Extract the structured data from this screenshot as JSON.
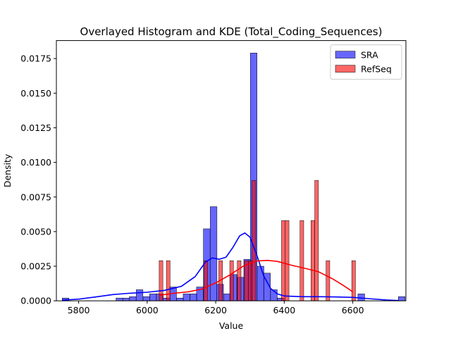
{
  "chart_data": {
    "type": "histogram",
    "title": "Overlayed Histogram and KDE (Total_Coding_Sequences)",
    "xlabel": "Value",
    "ylabel": "Density",
    "xlim": [
      5735,
      6755
    ],
    "ylim": [
      0,
      0.0188
    ],
    "xticks": [
      5800,
      6000,
      6200,
      6400,
      6600
    ],
    "yticks": [
      0.0,
      0.0025,
      0.005,
      0.0075,
      0.01,
      0.0125,
      0.015,
      0.0175
    ],
    "ytick_labels": [
      "0.0000",
      "0.0025",
      "0.0050",
      "0.0075",
      "0.0100",
      "0.0125",
      "0.0150",
      "0.0175"
    ],
    "grid": false,
    "legend_position": "top-right",
    "series": [
      {
        "name": "SRA",
        "color": "#0000ff",
        "bin_width": 19.6,
        "bins": [
          [
            5752,
            0.0002
          ],
          [
            5909,
            0.0002
          ],
          [
            5929,
            0.0002
          ],
          [
            5948,
            0.0003
          ],
          [
            5968,
            0.0008
          ],
          [
            5988,
            0.0003
          ],
          [
            6007,
            0.0005
          ],
          [
            6027,
            0.0005
          ],
          [
            6046,
            0.0002
          ],
          [
            6066,
            0.001
          ],
          [
            6086,
            0.0002
          ],
          [
            6105,
            0.0005
          ],
          [
            6125,
            0.0005
          ],
          [
            6144,
            0.001
          ],
          [
            6164,
            0.0052
          ],
          [
            6184,
            0.0068
          ],
          [
            6203,
            0.0012
          ],
          [
            6223,
            0.0005
          ],
          [
            6242,
            0.0019
          ],
          [
            6262,
            0.0017
          ],
          [
            6282,
            0.003
          ],
          [
            6301,
            0.0179
          ],
          [
            6321,
            0.0025
          ],
          [
            6340,
            0.002
          ],
          [
            6360,
            0.0008
          ],
          [
            6380,
            0.0002
          ],
          [
            6615,
            0.0005
          ],
          [
            6733,
            0.0003
          ]
        ],
        "kde": [
          [
            5752,
            5e-05
          ],
          [
            5800,
            0.00012
          ],
          [
            5850,
            0.00028
          ],
          [
            5900,
            0.00045
          ],
          [
            5950,
            0.00055
          ],
          [
            6000,
            0.00062
          ],
          [
            6050,
            0.00075
          ],
          [
            6100,
            0.00105
          ],
          [
            6140,
            0.00175
          ],
          [
            6170,
            0.0028
          ],
          [
            6190,
            0.0031
          ],
          [
            6210,
            0.003
          ],
          [
            6230,
            0.00315
          ],
          [
            6250,
            0.00385
          ],
          [
            6270,
            0.0047
          ],
          [
            6285,
            0.0049
          ],
          [
            6300,
            0.0046
          ],
          [
            6320,
            0.0033
          ],
          [
            6340,
            0.0018
          ],
          [
            6360,
            0.0009
          ],
          [
            6380,
            0.0005
          ],
          [
            6400,
            0.00035
          ],
          [
            6450,
            0.0003
          ],
          [
            6500,
            0.0003
          ],
          [
            6550,
            0.00028
          ],
          [
            6600,
            0.00025
          ],
          [
            6650,
            0.00015
          ],
          [
            6700,
            6e-05
          ],
          [
            6735,
            2e-05
          ]
        ]
      },
      {
        "name": "RefSeq",
        "color": "#ff0000",
        "bin_width": 10.8,
        "bins": [
          [
            6035,
            0.0029
          ],
          [
            6056,
            0.0029
          ],
          [
            6166,
            0.0029
          ],
          [
            6209,
            0.0029
          ],
          [
            6241,
            0.0029
          ],
          [
            6263,
            0.0029
          ],
          [
            6284,
            0.0029
          ],
          [
            6295,
            0.0029
          ],
          [
            6306,
            0.0087
          ],
          [
            6392,
            0.0058
          ],
          [
            6403,
            0.0058
          ],
          [
            6446,
            0.0058
          ],
          [
            6478,
            0.0058
          ],
          [
            6489,
            0.0087
          ],
          [
            6522,
            0.0029
          ],
          [
            6597,
            0.0029
          ]
        ],
        "kde": [
          [
            6035,
            0.0004
          ],
          [
            6080,
            0.00055
          ],
          [
            6120,
            0.00065
          ],
          [
            6160,
            0.00085
          ],
          [
            6200,
            0.0013
          ],
          [
            6240,
            0.00185
          ],
          [
            6280,
            0.0025
          ],
          [
            6320,
            0.00288
          ],
          [
            6350,
            0.00292
          ],
          [
            6380,
            0.00285
          ],
          [
            6420,
            0.00258
          ],
          [
            6460,
            0.00235
          ],
          [
            6500,
            0.0021
          ],
          [
            6540,
            0.0016
          ],
          [
            6570,
            0.00115
          ],
          [
            6600,
            0.00065
          ]
        ]
      }
    ]
  }
}
